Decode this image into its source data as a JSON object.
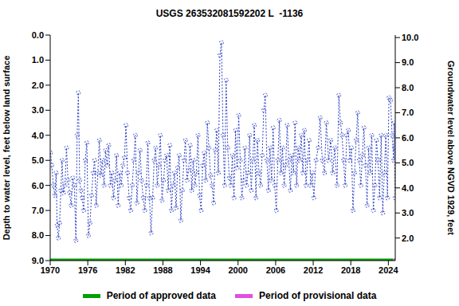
{
  "chart_data": {
    "type": "line",
    "title": "USGS 263532081592202 L  -1136",
    "xlim": [
      1970,
      2025.1
    ],
    "xticks": [
      1970,
      1976,
      1982,
      1988,
      1994,
      2000,
      2006,
      2012,
      2018,
      2024
    ],
    "ylabel": "Depth to water level, feet below land surface",
    "ylim": [
      0,
      9
    ],
    "yticks": [
      {
        "value": 0,
        "label": "0.0"
      },
      {
        "value": 1,
        "label": "1.0"
      },
      {
        "value": 2,
        "label": "2.0"
      },
      {
        "value": 3,
        "label": "3.0"
      },
      {
        "value": 4,
        "label": "4.0"
      },
      {
        "value": 5,
        "label": "5.0"
      },
      {
        "value": 6,
        "label": "6.0"
      },
      {
        "value": 7,
        "label": "7.0"
      },
      {
        "value": 8,
        "label": "8.0"
      },
      {
        "value": 9,
        "label": "9.0"
      }
    ],
    "y2label": "Groundwater level above NGVD 1929, feet",
    "y2lim": [
      1.1,
      10.1
    ],
    "y2ticks": [
      {
        "value": 2,
        "label": "2.0"
      },
      {
        "value": 3,
        "label": "3.0"
      },
      {
        "value": 4,
        "label": "4.0"
      },
      {
        "value": 5,
        "label": "5.0"
      },
      {
        "value": 6,
        "label": "6.0"
      },
      {
        "value": 7,
        "label": "7.0"
      },
      {
        "value": 8,
        "label": "8.0"
      },
      {
        "value": 9,
        "label": "9.0"
      },
      {
        "value": 10,
        "label": "10.0"
      }
    ],
    "legend": "bottom",
    "series": [
      {
        "color": "#2b3fc4",
        "marker": "circle",
        "line_style": "dotted",
        "x": [
          1970.05,
          1970.25,
          1970.5,
          1970.75,
          1970.95,
          1971.1,
          1971.3,
          1971.5,
          1971.7,
          1971.9,
          1972.1,
          1972.35,
          1972.6,
          1972.85,
          1973.1,
          1973.35,
          1973.6,
          1973.85,
          1974.1,
          1974.3,
          1974.5,
          1974.7,
          1974.9,
          1975.1,
          1975.35,
          1975.6,
          1975.85,
          1976.1,
          1976.35,
          1976.6,
          1976.85,
          1977.1,
          1977.35,
          1977.6,
          1977.85,
          1978.1,
          1978.35,
          1978.6,
          1978.85,
          1979.1,
          1979.35,
          1979.6,
          1979.85,
          1980.1,
          1980.35,
          1980.6,
          1980.85,
          1981.1,
          1981.35,
          1981.6,
          1981.85,
          1982.1,
          1982.35,
          1982.6,
          1982.85,
          1983.1,
          1983.35,
          1983.6,
          1983.85,
          1984.1,
          1984.35,
          1984.6,
          1984.85,
          1985.1,
          1985.35,
          1985.6,
          1985.85,
          1986.1,
          1986.35,
          1986.6,
          1986.85,
          1987.1,
          1987.35,
          1987.6,
          1987.85,
          1988.1,
          1988.35,
          1988.6,
          1988.85,
          1989.1,
          1989.35,
          1989.6,
          1989.85,
          1990.1,
          1990.35,
          1990.6,
          1990.85,
          1991.1,
          1991.35,
          1991.6,
          1991.85,
          1992.1,
          1992.35,
          1992.6,
          1992.85,
          1993.1,
          1993.35,
          1993.6,
          1993.85,
          1994.1,
          1994.35,
          1994.6,
          1994.85,
          1995.1,
          1995.35,
          1995.6,
          1995.85,
          1996.1,
          1996.35,
          1996.6,
          1996.85,
          1997.1,
          1997.35,
          1997.6,
          1997.85,
          1998.1,
          1998.35,
          1998.6,
          1998.85,
          1999.1,
          1999.35,
          1999.6,
          1999.85,
          2000.1,
          2000.35,
          2000.6,
          2000.85,
          2001.1,
          2001.35,
          2001.6,
          2001.85,
          2002.1,
          2002.35,
          2002.6,
          2002.85,
          2003.1,
          2003.35,
          2003.6,
          2003.85,
          2004.1,
          2004.35,
          2004.6,
          2004.85,
          2005.1,
          2005.35,
          2005.6,
          2005.85,
          2006.1,
          2006.35,
          2006.6,
          2006.85,
          2007.1,
          2007.35,
          2007.6,
          2007.85,
          2008.1,
          2008.35,
          2008.6,
          2008.85,
          2009.1,
          2009.35,
          2009.6,
          2009.85,
          2010.1,
          2010.35,
          2010.6,
          2010.85,
          2011.1,
          2011.35,
          2011.6,
          2011.85,
          2012.1,
          2012.45,
          2012.8,
          2013.1,
          2013.45,
          2013.8,
          2014.1,
          2014.45,
          2014.8,
          2015.1,
          2015.45,
          2015.8,
          2016.1,
          2016.35,
          2016.6,
          2016.85,
          2017.1,
          2017.35,
          2017.6,
          2017.85,
          2018.1,
          2018.35,
          2018.6,
          2018.85,
          2019.1,
          2019.35,
          2019.6,
          2019.85,
          2020.1,
          2020.35,
          2020.6,
          2020.85,
          2021.1,
          2021.35,
          2021.6,
          2021.85,
          2022.1,
          2022.35,
          2022.6,
          2022.85,
          2023.1,
          2023.35,
          2023.6,
          2023.85,
          2024.1,
          2024.35,
          2024.6,
          2024.85,
          2024.95,
          2025.0,
          2025.08
        ],
        "values": [
          4.7,
          5.2,
          6.0,
          6.4,
          5.5,
          7.6,
          8.1,
          7.5,
          6.2,
          5.0,
          6.3,
          6.0,
          4.5,
          5.8,
          6.3,
          6.8,
          5.7,
          6.0,
          8.2,
          4.0,
          2.3,
          5.8,
          6.2,
          6.5,
          7.0,
          5.0,
          4.3,
          8.0,
          7.5,
          6.4,
          5.5,
          5.0,
          6.8,
          5.5,
          4.2,
          5.6,
          5.0,
          6.0,
          4.6,
          5.2,
          4.4,
          6.0,
          5.5,
          6.5,
          5.8,
          4.8,
          6.8,
          5.5,
          6.0,
          5.2,
          4.9,
          3.6,
          5.5,
          6.5,
          7.0,
          6.0,
          5.0,
          4.0,
          6.7,
          5.5,
          4.6,
          5.8,
          6.5,
          7.0,
          6.0,
          4.3,
          6.5,
          7.9,
          6.5,
          5.0,
          4.5,
          6.0,
          5.2,
          4.0,
          6.6,
          5.8,
          5.0,
          4.8,
          6.2,
          4.4,
          7.0,
          6.0,
          5.5,
          6.9,
          5.3,
          4.8,
          7.4,
          6.2,
          5.0,
          4.2,
          5.8,
          5.4,
          4.4,
          6.2,
          5.0,
          6.0,
          5.5,
          4.0,
          6.4,
          7.0,
          5.2,
          4.7,
          5.8,
          3.5,
          4.5,
          5.6,
          6.0,
          6.7,
          4.6,
          3.8,
          5.5,
          0.8,
          0.3,
          4.0,
          6.0,
          1.8,
          4.5,
          5.7,
          6.0,
          4.8,
          6.5,
          3.8,
          5.3,
          3.2,
          5.0,
          6.5,
          5.8,
          4.5,
          6.0,
          5.5,
          4.0,
          6.2,
          5.0,
          3.6,
          6.5,
          4.2,
          5.5,
          6.0,
          4.8,
          3.0,
          2.4,
          5.0,
          6.2,
          4.5,
          5.8,
          3.7,
          6.0,
          7.0,
          5.0,
          3.4,
          5.5,
          4.5,
          6.0,
          5.2,
          3.6,
          5.0,
          6.2,
          4.8,
          5.5,
          3.5,
          6.0,
          4.5,
          5.0,
          4.0,
          5.5,
          3.8,
          6.0,
          5.0,
          4.2,
          6.0,
          5.5,
          6.5,
          5.0,
          4.5,
          3.3,
          5.0,
          5.5,
          3.5,
          5.0,
          4.2,
          5.5,
          4.5,
          6.0,
          2.4,
          3.5,
          4.0,
          5.0,
          6.0,
          4.0,
          3.8,
          5.0,
          4.5,
          7.0,
          5.5,
          4.2,
          3.1,
          5.0,
          6.0,
          4.8,
          3.7,
          5.2,
          6.8,
          4.5,
          5.5,
          4.0,
          7.0,
          6.0,
          4.2,
          5.0,
          6.5,
          4.0,
          7.1,
          5.5,
          4.0,
          6.5,
          2.5,
          2.6,
          4.0,
          5.0,
          3.5,
          4.5,
          6.5
        ]
      },
      {
        "name": "Period of approved data",
        "color": "#00a000",
        "line_style": "solid",
        "marker": "none",
        "x": [
          1970,
          2024.8
        ],
        "values": [
          9,
          9
        ]
      },
      {
        "name": "Period of provisional data",
        "color": "#e050e0",
        "line_style": "solid",
        "marker": "none",
        "x": [
          2024.8,
          2025.1
        ],
        "values": [
          9,
          9
        ]
      }
    ]
  }
}
